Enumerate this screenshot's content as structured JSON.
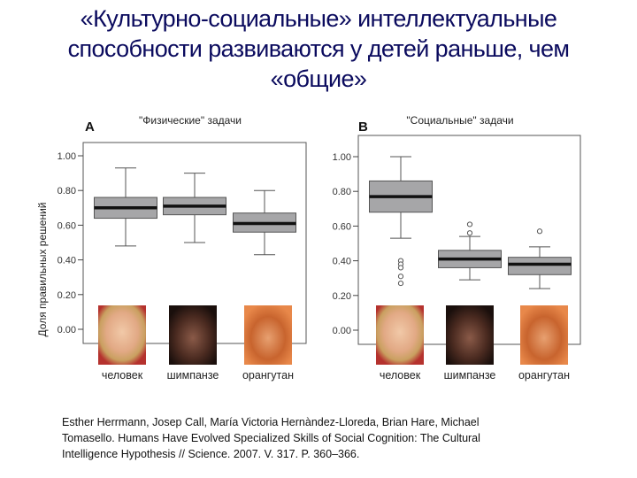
{
  "title_lines": [
    "«Культурно-социальные» интеллектуальные",
    "способности развиваются у детей раньше, чем",
    "«общие»"
  ],
  "citation_lines": [
    "Esther Herrmann, Josep Call, María Victoria Hernàndez-Lloreda, Brian Hare, Michael",
    "Tomasello. Humans Have Evolved Specialized Skills of Social Cognition: The Cultural",
    "Intelligence Hypothesis // Science. 2007. V. 317. P. 360–366."
  ],
  "colors": {
    "title": "#0b0b5e",
    "box_fill": "#a6a6a8",
    "median": "#111111"
  },
  "chart_data": [
    {
      "type": "box",
      "panel_label": "A",
      "title": "\"Физические\" задачи",
      "ylabel": "Доля правильных решений",
      "ylim": [
        -0.08,
        1.08
      ],
      "yticks": [
        "1.00",
        "0.80",
        "0.60",
        "0.40",
        "0.20",
        "0.00"
      ],
      "categories": [
        "человек",
        "шимпанзе",
        "орангутан"
      ],
      "boxes": [
        {
          "min": 0.48,
          "q1": 0.64,
          "median": 0.7,
          "q3": 0.76,
          "max": 0.93,
          "outliers": []
        },
        {
          "min": 0.5,
          "q1": 0.66,
          "median": 0.71,
          "q3": 0.76,
          "max": 0.9,
          "outliers": []
        },
        {
          "min": 0.43,
          "q1": 0.56,
          "median": 0.61,
          "q3": 0.67,
          "max": 0.8,
          "outliers": []
        }
      ]
    },
    {
      "type": "box",
      "panel_label": "B",
      "title": "\"Социальные\" задачи",
      "ylabel": "",
      "ylim": [
        -0.08,
        1.12
      ],
      "yticks": [
        "1.00",
        "0.80",
        "0.60",
        "0.40",
        "0.20",
        "0.00"
      ],
      "categories": [
        "человек",
        "шимпанзе",
        "орангутан"
      ],
      "boxes": [
        {
          "min": 0.53,
          "q1": 0.68,
          "median": 0.77,
          "q3": 0.86,
          "max": 1.0,
          "outliers": [
            0.4,
            0.38,
            0.36,
            0.31,
            0.27
          ]
        },
        {
          "min": 0.29,
          "q1": 0.36,
          "median": 0.41,
          "q3": 0.46,
          "max": 0.54,
          "outliers": [
            0.61,
            0.56
          ]
        },
        {
          "min": 0.24,
          "q1": 0.32,
          "median": 0.38,
          "q3": 0.42,
          "max": 0.48,
          "outliers": [
            0.57
          ]
        }
      ]
    }
  ]
}
